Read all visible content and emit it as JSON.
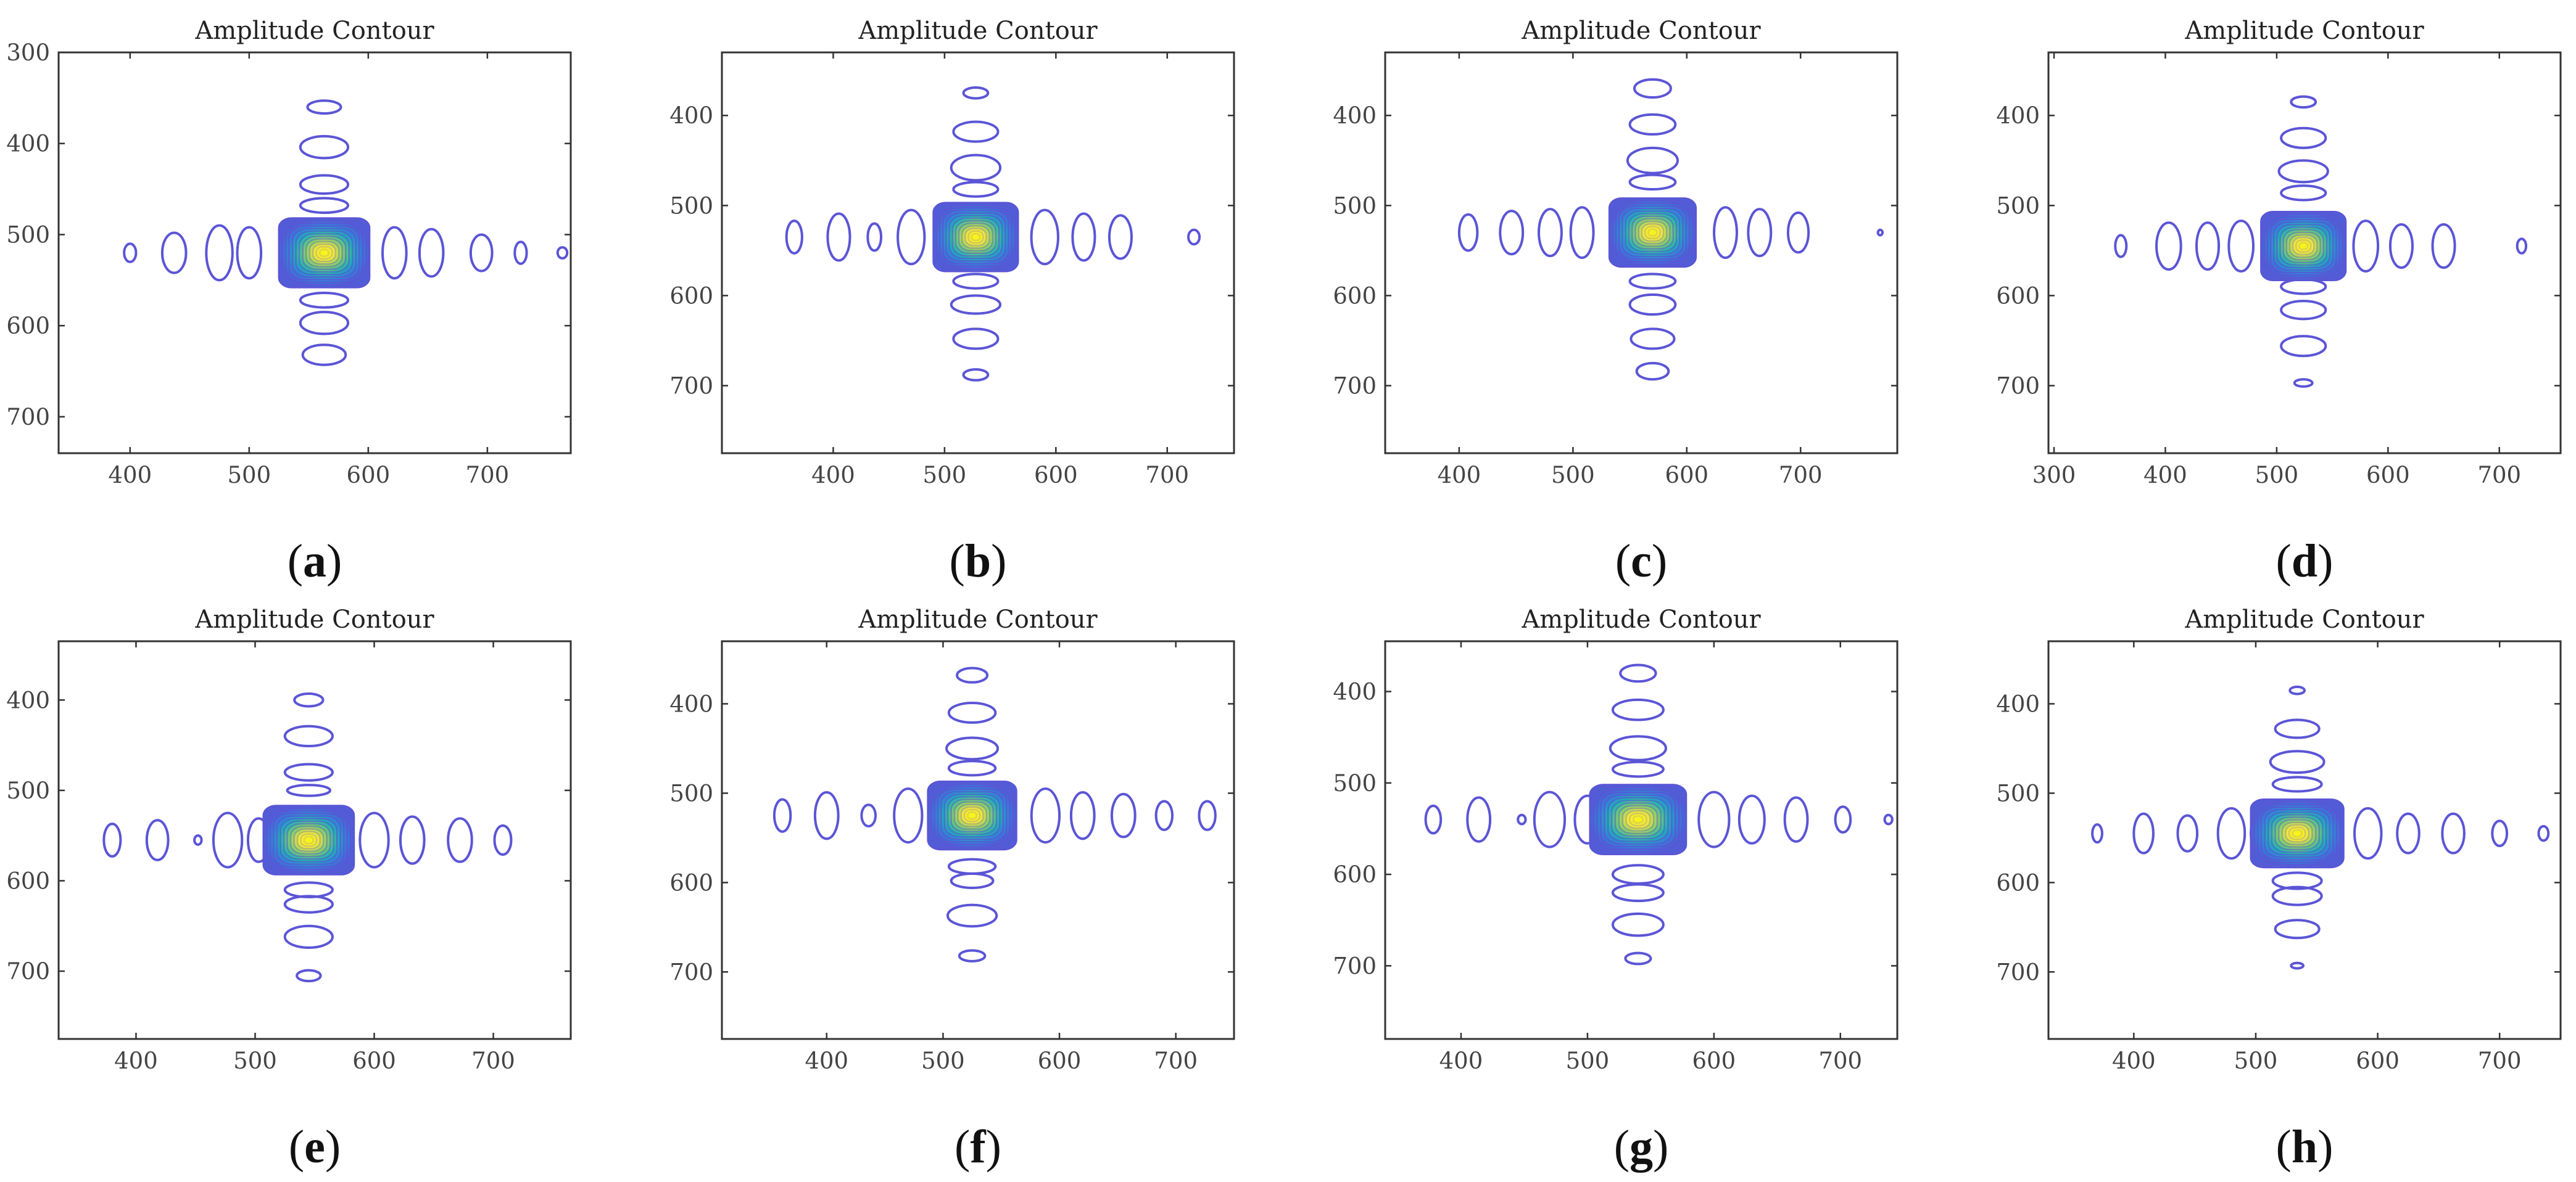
{
  "figure": {
    "panel_titles": "Amplitude Contour"
  },
  "chart_data": [
    {
      "type": "contour",
      "label": "(a)",
      "label_letter": "a",
      "title": "Amplitude Contour",
      "xlim": [
        340,
        770
      ],
      "ylim": [
        300,
        740
      ],
      "xticks": [
        400,
        500,
        600,
        700
      ],
      "yticks": [
        300,
        400,
        500,
        600,
        700
      ],
      "center": [
        563,
        520
      ],
      "x_lobes": [
        [
          400,
          5,
          10
        ],
        [
          437,
          10,
          22
        ],
        [
          475,
          11,
          30
        ],
        [
          500,
          10,
          28
        ],
        [
          622,
          10,
          28
        ],
        [
          653,
          10,
          26
        ],
        [
          695,
          9,
          20
        ],
        [
          728,
          5,
          12
        ],
        [
          763,
          4,
          6
        ]
      ],
      "y_lobes": [
        [
          360,
          14,
          7
        ],
        [
          404,
          20,
          12
        ],
        [
          445,
          20,
          10
        ],
        [
          468,
          20,
          8
        ],
        [
          572,
          20,
          8
        ],
        [
          597,
          20,
          12
        ],
        [
          632,
          18,
          11
        ]
      ]
    },
    {
      "type": "contour",
      "label": "(b)",
      "label_letter": "b",
      "title": "Amplitude Contour",
      "xlim": [
        300,
        760
      ],
      "ylim": [
        330,
        775
      ],
      "xticks": [
        400,
        500,
        600,
        700
      ],
      "yticks": [
        400,
        500,
        600,
        700
      ],
      "center": [
        528,
        535
      ],
      "x_lobes": [
        [
          365,
          7,
          18
        ],
        [
          405,
          10,
          26
        ],
        [
          437,
          6,
          15
        ],
        [
          470,
          12,
          30
        ],
        [
          590,
          12,
          30
        ],
        [
          625,
          10,
          26
        ],
        [
          658,
          10,
          24
        ],
        [
          724,
          5,
          8
        ]
      ],
      "y_lobes": [
        [
          375,
          11,
          6
        ],
        [
          418,
          20,
          11
        ],
        [
          458,
          22,
          14
        ],
        [
          482,
          20,
          8
        ],
        [
          584,
          20,
          8
        ],
        [
          610,
          22,
          10
        ],
        [
          648,
          20,
          11
        ],
        [
          688,
          11,
          6
        ]
      ]
    },
    {
      "type": "contour",
      "label": "(c)",
      "label_letter": "c",
      "title": "Amplitude Contour",
      "xlim": [
        335,
        785
      ],
      "ylim": [
        330,
        775
      ],
      "xticks": [
        400,
        500,
        600,
        700
      ],
      "yticks": [
        400,
        500,
        600,
        700
      ],
      "center": [
        570,
        530
      ],
      "x_lobes": [
        [
          408,
          8,
          20
        ],
        [
          446,
          10,
          24
        ],
        [
          480,
          10,
          26
        ],
        [
          508,
          10,
          28
        ],
        [
          634,
          10,
          28
        ],
        [
          664,
          10,
          26
        ],
        [
          698,
          9,
          22
        ],
        [
          770,
          2,
          3
        ]
      ],
      "y_lobes": [
        [
          370,
          16,
          10
        ],
        [
          410,
          20,
          11
        ],
        [
          450,
          22,
          14
        ],
        [
          474,
          20,
          8
        ],
        [
          584,
          20,
          8
        ],
        [
          610,
          20,
          11
        ],
        [
          648,
          19,
          11
        ],
        [
          684,
          14,
          9
        ]
      ]
    },
    {
      "type": "contour",
      "label": "(d)",
      "label_letter": "d",
      "title": "Amplitude Contour",
      "xlim": [
        295,
        755
      ],
      "ylim": [
        330,
        775
      ],
      "xticks": [
        300,
        400,
        500,
        600,
        700
      ],
      "yticks": [
        400,
        500,
        600,
        700
      ],
      "center": [
        524,
        545
      ],
      "x_lobes": [
        [
          360,
          5,
          12
        ],
        [
          403,
          11,
          26
        ],
        [
          438,
          10,
          26
        ],
        [
          468,
          11,
          28
        ],
        [
          580,
          11,
          28
        ],
        [
          612,
          10,
          24
        ],
        [
          650,
          10,
          24
        ],
        [
          720,
          4,
          8
        ]
      ],
      "y_lobes": [
        [
          385,
          11,
          6
        ],
        [
          425,
          20,
          11
        ],
        [
          462,
          22,
          12
        ],
        [
          486,
          20,
          8
        ],
        [
          590,
          20,
          8
        ],
        [
          616,
          20,
          10
        ],
        [
          656,
          20,
          11
        ],
        [
          697,
          8,
          4
        ]
      ]
    },
    {
      "type": "contour",
      "label": "(e)",
      "label_letter": "e",
      "title": "Amplitude Contour",
      "xlim": [
        335,
        765
      ],
      "ylim": [
        335,
        775
      ],
      "xticks": [
        400,
        500,
        600,
        700
      ],
      "yticks": [
        400,
        500,
        600,
        700
      ],
      "center": [
        545,
        555
      ],
      "x_lobes": [
        [
          380,
          7,
          18
        ],
        [
          418,
          9,
          22
        ],
        [
          452,
          3,
          5
        ],
        [
          477,
          12,
          30
        ],
        [
          503,
          9,
          24
        ],
        [
          600,
          12,
          30
        ],
        [
          632,
          10,
          26
        ],
        [
          672,
          10,
          24
        ],
        [
          708,
          7,
          16
        ]
      ],
      "y_lobes": [
        [
          400,
          12,
          7
        ],
        [
          440,
          20,
          11
        ],
        [
          480,
          20,
          9
        ],
        [
          500,
          18,
          6
        ],
        [
          610,
          20,
          8
        ],
        [
          626,
          20,
          9
        ],
        [
          662,
          20,
          12
        ],
        [
          705,
          10,
          6
        ]
      ]
    },
    {
      "type": "contour",
      "label": "(f)",
      "label_letter": "f",
      "title": "Amplitude Contour",
      "xlim": [
        310,
        750
      ],
      "ylim": [
        330,
        775
      ],
      "xticks": [
        400,
        500,
        600,
        700
      ],
      "yticks": [
        400,
        500,
        600,
        700
      ],
      "center": [
        525,
        525
      ],
      "x_lobes": [
        [
          362,
          7,
          18
        ],
        [
          400,
          10,
          26
        ],
        [
          436,
          6,
          12
        ],
        [
          470,
          12,
          30
        ],
        [
          588,
          12,
          30
        ],
        [
          620,
          10,
          26
        ],
        [
          655,
          10,
          24
        ],
        [
          690,
          7,
          16
        ],
        [
          727,
          7,
          16
        ]
      ],
      "y_lobes": [
        [
          368,
          13,
          8
        ],
        [
          410,
          20,
          11
        ],
        [
          450,
          22,
          12
        ],
        [
          472,
          20,
          8
        ],
        [
          582,
          20,
          8
        ],
        [
          598,
          18,
          8
        ],
        [
          637,
          21,
          12
        ],
        [
          682,
          11,
          6
        ]
      ]
    },
    {
      "type": "contour",
      "label": "(g)",
      "label_letter": "g",
      "title": "Amplitude Contour",
      "xlim": [
        340,
        745
      ],
      "ylim": [
        345,
        780
      ],
      "xticks": [
        400,
        500,
        600,
        700
      ],
      "yticks": [
        400,
        500,
        600,
        700
      ],
      "center": [
        540,
        540
      ],
      "x_lobes": [
        [
          378,
          6,
          15
        ],
        [
          414,
          9,
          24
        ],
        [
          448,
          3,
          5
        ],
        [
          470,
          12,
          30
        ],
        [
          500,
          10,
          26
        ],
        [
          600,
          12,
          30
        ],
        [
          630,
          10,
          26
        ],
        [
          665,
          9,
          24
        ],
        [
          702,
          6,
          14
        ],
        [
          738,
          3,
          5
        ]
      ],
      "y_lobes": [
        [
          380,
          14,
          9
        ],
        [
          420,
          20,
          11
        ],
        [
          462,
          22,
          13
        ],
        [
          485,
          20,
          8
        ],
        [
          600,
          20,
          10
        ],
        [
          620,
          20,
          9
        ],
        [
          655,
          20,
          12
        ],
        [
          692,
          10,
          6
        ]
      ]
    },
    {
      "type": "contour",
      "label": "(h)",
      "label_letter": "h",
      "title": "Amplitude Contour",
      "xlim": [
        330,
        750
      ],
      "ylim": [
        330,
        775
      ],
      "xticks": [
        400,
        500,
        600,
        700
      ],
      "yticks": [
        400,
        500,
        600,
        700
      ],
      "center": [
        534,
        545
      ],
      "x_lobes": [
        [
          370,
          4,
          10
        ],
        [
          408,
          8,
          22
        ],
        [
          444,
          8,
          20
        ],
        [
          480,
          11,
          28
        ],
        [
          505,
          9,
          24
        ],
        [
          592,
          11,
          28
        ],
        [
          625,
          9,
          22
        ],
        [
          662,
          9,
          22
        ],
        [
          700,
          6,
          14
        ],
        [
          736,
          4,
          8
        ]
      ],
      "y_lobes": [
        [
          385,
          6,
          4
        ],
        [
          428,
          18,
          10
        ],
        [
          465,
          22,
          12
        ],
        [
          490,
          20,
          8
        ],
        [
          598,
          20,
          9
        ],
        [
          615,
          20,
          10
        ],
        [
          652,
          18,
          10
        ],
        [
          693,
          5,
          3
        ]
      ]
    }
  ]
}
